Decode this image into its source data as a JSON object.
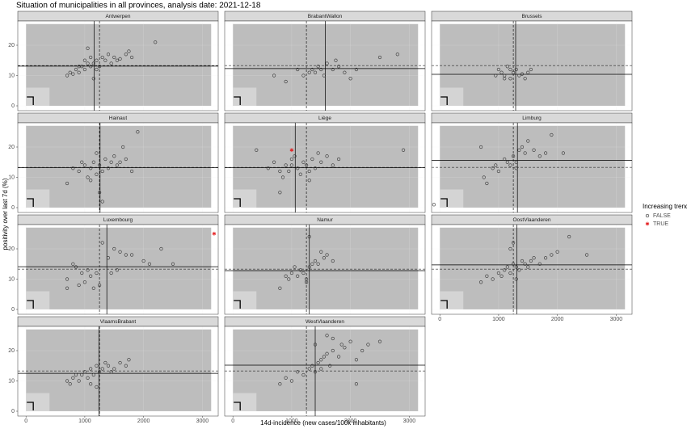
{
  "title": "Situation of municipalities in all provinces, analysis date: 2021-12-18",
  "x_label": "14d-incidence (new cases/100k inhabitants)",
  "y_label": "positivity over last 7d (%)",
  "legend": {
    "title": "Increasing trend",
    "entries": [
      {
        "name": "FALSE",
        "color": "#333333"
      },
      {
        "name": "TRUE",
        "color": "#e41a1c"
      }
    ]
  },
  "background_regions": [
    {
      "x": [
        0,
        3150
      ],
      "y": [
        0,
        27
      ],
      "color": "#bdbdbd"
    },
    {
      "x": [
        0,
        400
      ],
      "y": [
        0,
        6
      ],
      "color": "#d4d4d4"
    }
  ],
  "reference_lines": {
    "x": 1250,
    "y": 13.3
  },
  "chart_data": [
    {
      "type": "scatter",
      "title": "Antwerpen",
      "xlim": [
        -140,
        3270
      ],
      "ylim": [
        -1.6,
        28
      ],
      "xticks": [
        0,
        1000,
        2000,
        3000
      ],
      "yticks": [
        0,
        10,
        20
      ],
      "province_lines": {
        "x": 1160,
        "y": 13.1
      },
      "series": [
        {
          "name": "FALSE",
          "color": "#333333",
          "x": [
            700,
            750,
            800,
            850,
            900,
            950,
            1000,
            1000,
            1050,
            1100,
            1100,
            1150,
            1200,
            1200,
            1250,
            1300,
            1350,
            1400,
            1450,
            1500,
            1550,
            1600,
            1700,
            1750,
            1800,
            2200,
            1050,
            1150,
            900
          ],
          "values": [
            10,
            11,
            10.5,
            12,
            11,
            13,
            12,
            15,
            14,
            13,
            16,
            14,
            15,
            12,
            13,
            16,
            15,
            17,
            14,
            16,
            15,
            15.5,
            17,
            18,
            16,
            21,
            19,
            9,
            13
          ]
        }
      ]
    },
    {
      "type": "scatter",
      "title": "BrabantWallon",
      "xlim": [
        -140,
        3270
      ],
      "ylim": [
        -1.6,
        28
      ],
      "xticks": [
        0,
        1000,
        2000,
        3000
      ],
      "yticks": [
        0,
        10,
        20
      ],
      "province_lines": {
        "x": 1570,
        "y": 12.3
      },
      "series": [
        {
          "name": "FALSE",
          "color": "#333333",
          "x": [
            700,
            900,
            1100,
            1200,
            1300,
            1350,
            1400,
            1450,
            1500,
            1550,
            1600,
            1700,
            1800,
            1900,
            2000,
            2100,
            2500,
            2800,
            1750
          ],
          "values": [
            10,
            8,
            12,
            10,
            11,
            12,
            11,
            13,
            12,
            10,
            14,
            12,
            13,
            11,
            9,
            12,
            16,
            17,
            15
          ]
        }
      ]
    },
    {
      "type": "scatter",
      "title": "Brussels",
      "xlim": [
        -140,
        3270
      ],
      "ylim": [
        -1.6,
        28
      ],
      "xticks": [
        0,
        1000,
        2000,
        3000
      ],
      "yticks": [
        0,
        10,
        20
      ],
      "province_lines": {
        "x": 1290,
        "y": 10.4
      },
      "series": [
        {
          "name": "FALSE",
          "color": "#333333",
          "x": [
            950,
            1000,
            1050,
            1100,
            1150,
            1200,
            1250,
            1300,
            1350,
            1400,
            1450,
            1500,
            1550,
            1100,
            1200
          ],
          "values": [
            10,
            12,
            11,
            10,
            13,
            9,
            11,
            12,
            10,
            10.5,
            9,
            11,
            12,
            9,
            12
          ]
        }
      ]
    },
    {
      "type": "scatter",
      "title": "Hainaut",
      "xlim": [
        -140,
        3270
      ],
      "ylim": [
        -1.6,
        28
      ],
      "xticks": [
        0,
        1000,
        2000,
        3000
      ],
      "yticks": [
        0,
        10,
        20
      ],
      "province_lines": {
        "x": 1260,
        "y": 13.2
      },
      "series": [
        {
          "name": "FALSE",
          "color": "#333333",
          "x": [
            700,
            900,
            1000,
            1050,
            1100,
            1150,
            1200,
            1200,
            1250,
            1300,
            1350,
            1400,
            1450,
            1500,
            1550,
            1600,
            1700,
            1800,
            1900,
            800,
            950,
            1250,
            1300,
            1650,
            1100
          ],
          "values": [
            8,
            12,
            14,
            10,
            13,
            15,
            11,
            18,
            14,
            12,
            16,
            13,
            15,
            17,
            14,
            15,
            16,
            12,
            25,
            13,
            15,
            5,
            2,
            20,
            9
          ]
        }
      ]
    },
    {
      "type": "scatter",
      "title": "Liège",
      "xlim": [
        -140,
        3270
      ],
      "ylim": [
        -1.6,
        28
      ],
      "xticks": [
        0,
        1000,
        2000,
        3000
      ],
      "yticks": [
        0,
        10,
        20
      ],
      "province_lines": {
        "x": 1060,
        "y": 13.2
      },
      "series": [
        {
          "name": "FALSE",
          "color": "#333333",
          "x": [
            400,
            600,
            700,
            800,
            850,
            900,
            950,
            1000,
            1050,
            1100,
            1150,
            1200,
            1250,
            1300,
            1350,
            1400,
            1450,
            1500,
            1600,
            1700,
            1800,
            2900,
            800,
            1300,
            1000
          ],
          "values": [
            19,
            13,
            15,
            12,
            10,
            14,
            12,
            16,
            17,
            13,
            11,
            15,
            14,
            12,
            16,
            13,
            18,
            15,
            17,
            14,
            16,
            19,
            5,
            9,
            14
          ]
        },
        {
          "name": "TRUE",
          "color": "#e41a1c",
          "x": [
            1000
          ],
          "values": [
            19
          ]
        }
      ]
    },
    {
      "type": "scatter",
      "title": "Limburg",
      "xlim": [
        -140,
        3270
      ],
      "ylim": [
        -1.6,
        28
      ],
      "xticks": [
        0,
        1000,
        2000,
        3000
      ],
      "yticks": [
        0,
        10,
        20
      ],
      "province_lines": {
        "x": 1320,
        "y": 15.6
      },
      "series": [
        {
          "name": "FALSE",
          "color": "#333333",
          "x": [
            -100,
            700,
            750,
            800,
            900,
            950,
            1000,
            1100,
            1150,
            1200,
            1250,
            1300,
            1350,
            1400,
            1450,
            1500,
            1600,
            1700,
            1800,
            1900,
            2100,
            1300
          ],
          "values": [
            1,
            20,
            10,
            8,
            13,
            14,
            12,
            16,
            15,
            14,
            17,
            15,
            19,
            20,
            18,
            22,
            19,
            17,
            18,
            24,
            18,
            13
          ]
        }
      ]
    },
    {
      "type": "scatter",
      "title": "Luxembourg",
      "xlim": [
        -140,
        3270
      ],
      "ylim": [
        -1.6,
        28
      ],
      "xticks": [
        0,
        1000,
        2000,
        3000
      ],
      "yticks": [
        0,
        10,
        20
      ],
      "province_lines": {
        "x": 1375,
        "y": 14.1
      },
      "series": [
        {
          "name": "FALSE",
          "color": "#333333",
          "x": [
            700,
            700,
            800,
            850,
            900,
            950,
            1000,
            1050,
            1100,
            1200,
            1250,
            1300,
            1400,
            1450,
            1500,
            1550,
            1600,
            1700,
            1800,
            2000,
            2100,
            2300,
            2500,
            1150
          ],
          "values": [
            7,
            10,
            15,
            14,
            8,
            12,
            9,
            13,
            11,
            12,
            8,
            22,
            17,
            12,
            20,
            13,
            19,
            18,
            18,
            16,
            15,
            20,
            15,
            7
          ]
        },
        {
          "name": "TRUE",
          "color": "#e41a1c",
          "x": [
            3200
          ],
          "values": [
            25
          ]
        }
      ]
    },
    {
      "type": "scatter",
      "title": "Namur",
      "xlim": [
        -140,
        3270
      ],
      "ylim": [
        -1.6,
        28
      ],
      "xticks": [
        0,
        1000,
        2000,
        3000
      ],
      "yticks": [
        0,
        10,
        20
      ],
      "province_lines": {
        "x": 1300,
        "y": 12.8
      },
      "series": [
        {
          "name": "FALSE",
          "color": "#333333",
          "x": [
            800,
            900,
            950,
            1000,
            1050,
            1100,
            1150,
            1200,
            1250,
            1300,
            1350,
            1400,
            1450,
            1500,
            1550,
            1600,
            1700,
            1300,
            1250
          ],
          "values": [
            7,
            11,
            10,
            12,
            14,
            11,
            13,
            12,
            10,
            14,
            15,
            16,
            15,
            19,
            17,
            18,
            16,
            24,
            9
          ]
        }
      ]
    },
    {
      "type": "scatter",
      "title": "OostVlaanderen",
      "xlim": [
        -140,
        3270
      ],
      "ylim": [
        -1.6,
        28
      ],
      "xticks": [
        0,
        1000,
        2000,
        3000
      ],
      "yticks": [
        0,
        10,
        20
      ],
      "province_lines": {
        "x": 1310,
        "y": 14.7
      },
      "series": [
        {
          "name": "FALSE",
          "color": "#333333",
          "x": [
            700,
            800,
            900,
            1000,
            1050,
            1100,
            1150,
            1200,
            1250,
            1300,
            1350,
            1400,
            1450,
            1500,
            1550,
            1600,
            1700,
            1800,
            1900,
            2000,
            2200,
            2500,
            1300,
            1200,
            1250
          ],
          "values": [
            9,
            11,
            10,
            12,
            11,
            13,
            14,
            12,
            15,
            14,
            13,
            16,
            15,
            14,
            16,
            17,
            15,
            17,
            18,
            19,
            24,
            18,
            10,
            20,
            22
          ]
        }
      ]
    },
    {
      "type": "scatter",
      "title": "VlaamsBrabant",
      "xlim": [
        -140,
        3270
      ],
      "ylim": [
        -1.6,
        28
      ],
      "xticks": [
        0,
        1000,
        2000,
        3000
      ],
      "yticks": [
        0,
        10,
        20
      ],
      "province_lines": {
        "x": 1240,
        "y": 12.5
      },
      "series": [
        {
          "name": "FALSE",
          "color": "#333333",
          "x": [
            700,
            750,
            800,
            850,
            900,
            950,
            1000,
            1050,
            1100,
            1150,
            1200,
            1250,
            1300,
            1350,
            1400,
            1450,
            1500,
            1600,
            1700,
            1750,
            1200,
            1100
          ],
          "values": [
            10,
            9,
            11,
            12,
            10,
            12,
            13,
            11,
            14,
            12,
            15,
            13,
            14,
            16,
            15,
            13,
            14,
            16,
            15,
            17,
            8,
            9
          ]
        }
      ]
    },
    {
      "type": "scatter",
      "title": "WestVlaanderen",
      "xlim": [
        -140,
        3270
      ],
      "ylim": [
        -1.6,
        28
      ],
      "xticks": [
        0,
        1000,
        2000,
        3000
      ],
      "yticks": [
        0,
        10,
        20
      ],
      "province_lines": {
        "x": 1400,
        "y": 15.2
      },
      "series": [
        {
          "name": "FALSE",
          "color": "#333333",
          "x": [
            800,
            900,
            1000,
            1100,
            1200,
            1300,
            1350,
            1400,
            1450,
            1500,
            1550,
            1600,
            1650,
            1700,
            1800,
            1850,
            1900,
            2000,
            2100,
            2200,
            2300,
            2500,
            1600,
            1700,
            1400,
            2100,
            1500
          ],
          "values": [
            9,
            11,
            10,
            13,
            12,
            14,
            15,
            13,
            16,
            17,
            18,
            19,
            15,
            20,
            18,
            22,
            21,
            23,
            17,
            20,
            22,
            23,
            25,
            24,
            22,
            9,
            14
          ]
        }
      ]
    }
  ]
}
